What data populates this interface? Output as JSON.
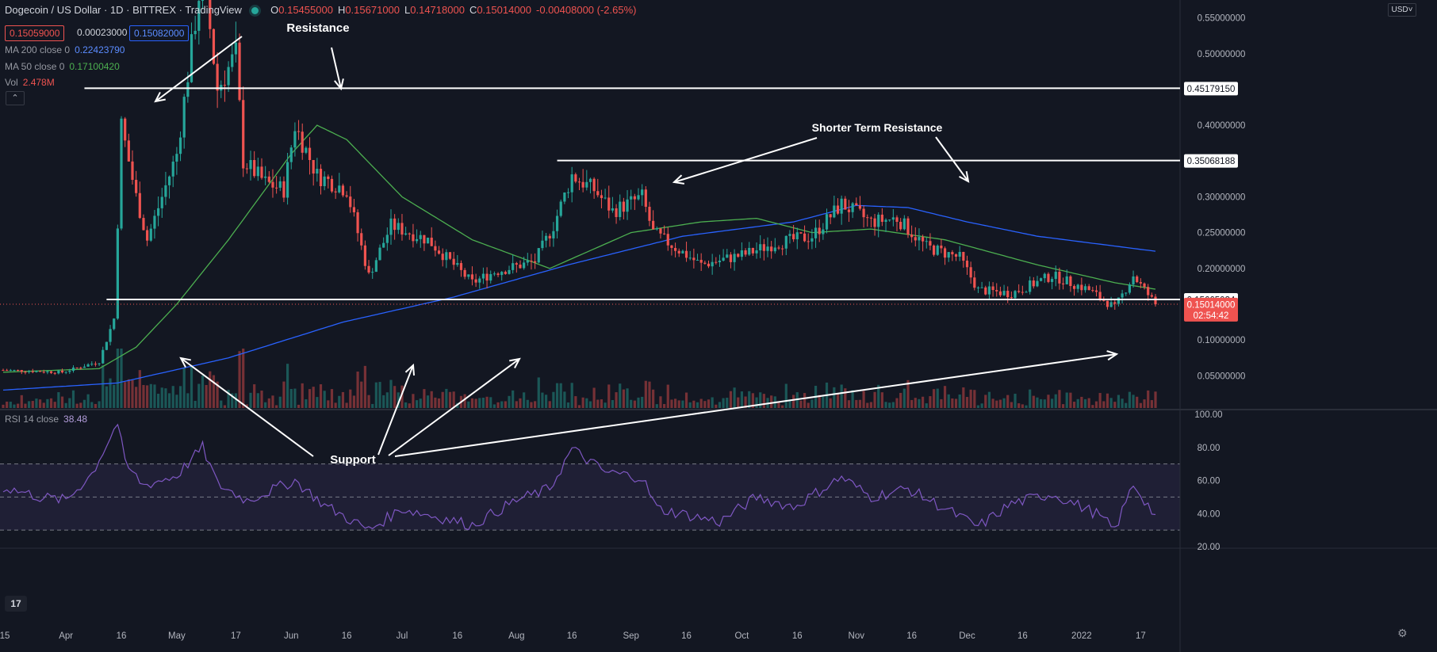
{
  "header": {
    "symbol": "Dogecoin / US Dollar · 1D · BITTREX · TradingView",
    "ohlc": [
      {
        "k": "O",
        "v": "0.15455000"
      },
      {
        "k": "H",
        "v": "0.15671000"
      },
      {
        "k": "L",
        "v": "0.14718000"
      },
      {
        "k": "C",
        "v": "0.15014000"
      },
      {
        "k": "",
        "v": "-0.00408000 (-2.65%)"
      }
    ],
    "bid": "0.15059000",
    "spread": "0.00023000",
    "ask": "0.15082000",
    "currency": "USD"
  },
  "indicators": {
    "ma200": {
      "label": "MA 200 close 0",
      "value": "0.22423790",
      "color": "#2962ff"
    },
    "ma50": {
      "label": "MA 50 close 0",
      "value": "0.17100420",
      "color": "#4caf50"
    },
    "vol": {
      "label": "Vol",
      "value": "2.478M",
      "color": "#ef5350"
    },
    "rsi": {
      "label": "RSI 14 close",
      "value": "38.48",
      "color": "#7e57c2"
    }
  },
  "annotations": {
    "resistance": "Resistance",
    "shorter_term_resistance": "Shorter Term Resistance",
    "support": "Support"
  },
  "price_axis": {
    "ticks": [
      "0.55000000",
      "0.50000000",
      "0.45179150",
      "0.40000000",
      "0.35068188",
      "0.30000000",
      "0.25000000",
      "0.20000000",
      "0.15665034",
      "0.15014000",
      "0.10000000",
      "0.05000000"
    ],
    "level_labels": {
      "resistance": "0.45179150",
      "short_resistance": "0.35068188",
      "support": "0.15665034"
    },
    "last_price": "0.15014000",
    "countdown": "02:54:42",
    "min": 0.005,
    "max": 0.575
  },
  "rsi_axis": {
    "ticks": [
      "100.00",
      "80.00",
      "60.00",
      "40.00",
      "20.00"
    ],
    "upper": 70,
    "mid": 50,
    "lower": 30
  },
  "time_axis": [
    "15",
    "Apr",
    "16",
    "May",
    "17",
    "Jun",
    "16",
    "Jul",
    "16",
    "Aug",
    "16",
    "Sep",
    "16",
    "Oct",
    "16",
    "Nov",
    "16",
    "Dec",
    "16",
    "2022",
    "17"
  ],
  "colors": {
    "up": "#26a69a",
    "down": "#ef5350",
    "ma50": "#4caf50",
    "ma200": "#2962ff",
    "rsi": "#7e57c2",
    "bg": "#131722"
  },
  "chart_data": {
    "type": "candlestick",
    "x_range": [
      "2021-03-15",
      "2022-01-21"
    ],
    "levels": {
      "resistance": 0.4517915,
      "short_term_resistance": 0.35068188,
      "support": 0.15665034
    },
    "close_path": [
      {
        "d": "2021-03-15",
        "v": 0.058
      },
      {
        "d": "2021-03-31",
        "v": 0.055
      },
      {
        "d": "2021-04-10",
        "v": 0.07
      },
      {
        "d": "2021-04-14",
        "v": 0.13
      },
      {
        "d": "2021-04-16",
        "v": 0.4
      },
      {
        "d": "2021-04-20",
        "v": 0.3
      },
      {
        "d": "2021-04-23",
        "v": 0.24
      },
      {
        "d": "2021-05-01",
        "v": 0.36
      },
      {
        "d": "2021-05-08",
        "v": 0.62
      },
      {
        "d": "2021-05-12",
        "v": 0.45
      },
      {
        "d": "2021-05-17",
        "v": 0.5
      },
      {
        "d": "2021-05-19",
        "v": 0.35
      },
      {
        "d": "2021-05-25",
        "v": 0.32
      },
      {
        "d": "2021-05-30",
        "v": 0.31
      },
      {
        "d": "2021-06-02",
        "v": 0.4
      },
      {
        "d": "2021-06-08",
        "v": 0.33
      },
      {
        "d": "2021-06-16",
        "v": 0.31
      },
      {
        "d": "2021-06-22",
        "v": 0.19
      },
      {
        "d": "2021-06-28",
        "v": 0.26
      },
      {
        "d": "2021-07-08",
        "v": 0.24
      },
      {
        "d": "2021-07-20",
        "v": 0.18
      },
      {
        "d": "2021-07-26",
        "v": 0.195
      },
      {
        "d": "2021-08-06",
        "v": 0.21
      },
      {
        "d": "2021-08-11",
        "v": 0.26
      },
      {
        "d": "2021-08-16",
        "v": 0.33
      },
      {
        "d": "2021-08-22",
        "v": 0.31
      },
      {
        "d": "2021-08-27",
        "v": 0.28
      },
      {
        "d": "2021-09-04",
        "v": 0.3
      },
      {
        "d": "2021-09-07",
        "v": 0.25
      },
      {
        "d": "2021-09-20",
        "v": 0.205
      },
      {
        "d": "2021-10-02",
        "v": 0.22
      },
      {
        "d": "2021-10-10",
        "v": 0.235
      },
      {
        "d": "2021-10-20",
        "v": 0.245
      },
      {
        "d": "2021-10-28",
        "v": 0.29
      },
      {
        "d": "2021-11-05",
        "v": 0.265
      },
      {
        "d": "2021-11-12",
        "v": 0.27
      },
      {
        "d": "2021-11-20",
        "v": 0.23
      },
      {
        "d": "2021-11-29",
        "v": 0.215
      },
      {
        "d": "2021-12-04",
        "v": 0.17
      },
      {
        "d": "2021-12-13",
        "v": 0.165
      },
      {
        "d": "2021-12-24",
        "v": 0.19
      },
      {
        "d": "2022-01-03",
        "v": 0.17
      },
      {
        "d": "2022-01-10",
        "v": 0.145
      },
      {
        "d": "2022-01-15",
        "v": 0.19
      },
      {
        "d": "2022-01-21",
        "v": 0.15
      }
    ],
    "ma50_path": [
      {
        "d": "2021-03-15",
        "v": 0.055
      },
      {
        "d": "2021-04-10",
        "v": 0.06
      },
      {
        "d": "2021-04-20",
        "v": 0.09
      },
      {
        "d": "2021-05-01",
        "v": 0.15
      },
      {
        "d": "2021-05-15",
        "v": 0.24
      },
      {
        "d": "2021-06-01",
        "v": 0.36
      },
      {
        "d": "2021-06-08",
        "v": 0.4
      },
      {
        "d": "2021-06-16",
        "v": 0.38
      },
      {
        "d": "2021-07-01",
        "v": 0.3
      },
      {
        "d": "2021-07-20",
        "v": 0.24
      },
      {
        "d": "2021-08-10",
        "v": 0.2
      },
      {
        "d": "2021-09-01",
        "v": 0.25
      },
      {
        "d": "2021-09-20",
        "v": 0.265
      },
      {
        "d": "2021-10-05",
        "v": 0.27
      },
      {
        "d": "2021-10-20",
        "v": 0.25
      },
      {
        "d": "2021-11-05",
        "v": 0.255
      },
      {
        "d": "2021-11-25",
        "v": 0.24
      },
      {
        "d": "2021-12-20",
        "v": 0.205
      },
      {
        "d": "2022-01-10",
        "v": 0.18
      },
      {
        "d": "2022-01-21",
        "v": 0.171
      }
    ],
    "ma200_path": [
      {
        "d": "2021-03-15",
        "v": 0.03
      },
      {
        "d": "2021-04-15",
        "v": 0.04
      },
      {
        "d": "2021-05-15",
        "v": 0.075
      },
      {
        "d": "2021-06-15",
        "v": 0.125
      },
      {
        "d": "2021-07-15",
        "v": 0.16
      },
      {
        "d": "2021-08-15",
        "v": 0.205
      },
      {
        "d": "2021-09-15",
        "v": 0.245
      },
      {
        "d": "2021-10-15",
        "v": 0.265
      },
      {
        "d": "2021-11-01",
        "v": 0.288
      },
      {
        "d": "2021-11-15",
        "v": 0.285
      },
      {
        "d": "2021-12-01",
        "v": 0.265
      },
      {
        "d": "2021-12-20",
        "v": 0.245
      },
      {
        "d": "2022-01-21",
        "v": 0.224
      }
    ],
    "rsi_path": [
      {
        "d": "2021-03-15",
        "v": 56
      },
      {
        "d": "2021-03-25",
        "v": 50
      },
      {
        "d": "2021-04-01",
        "v": 48
      },
      {
        "d": "2021-04-08",
        "v": 64
      },
      {
        "d": "2021-04-15",
        "v": 95
      },
      {
        "d": "2021-04-17",
        "v": 70
      },
      {
        "d": "2021-04-22",
        "v": 57
      },
      {
        "d": "2021-05-01",
        "v": 63
      },
      {
        "d": "2021-05-08",
        "v": 80
      },
      {
        "d": "2021-05-12",
        "v": 58
      },
      {
        "d": "2021-05-20",
        "v": 48
      },
      {
        "d": "2021-06-02",
        "v": 60
      },
      {
        "d": "2021-06-10",
        "v": 45
      },
      {
        "d": "2021-06-22",
        "v": 30
      },
      {
        "d": "2021-07-01",
        "v": 43
      },
      {
        "d": "2021-07-20",
        "v": 33
      },
      {
        "d": "2021-08-01",
        "v": 48
      },
      {
        "d": "2021-08-10",
        "v": 55
      },
      {
        "d": "2021-08-16",
        "v": 79
      },
      {
        "d": "2021-08-25",
        "v": 65
      },
      {
        "d": "2021-09-04",
        "v": 62
      },
      {
        "d": "2021-09-08",
        "v": 43
      },
      {
        "d": "2021-09-25",
        "v": 35
      },
      {
        "d": "2021-10-05",
        "v": 50
      },
      {
        "d": "2021-10-15",
        "v": 44
      },
      {
        "d": "2021-10-28",
        "v": 62
      },
      {
        "d": "2021-11-05",
        "v": 50
      },
      {
        "d": "2021-11-15",
        "v": 55
      },
      {
        "d": "2021-11-25",
        "v": 43
      },
      {
        "d": "2021-12-04",
        "v": 32
      },
      {
        "d": "2021-12-13",
        "v": 46
      },
      {
        "d": "2021-12-24",
        "v": 52
      },
      {
        "d": "2022-01-05",
        "v": 40
      },
      {
        "d": "2022-01-10",
        "v": 30
      },
      {
        "d": "2022-01-15",
        "v": 58
      },
      {
        "d": "2022-01-21",
        "v": 38.5
      }
    ]
  }
}
